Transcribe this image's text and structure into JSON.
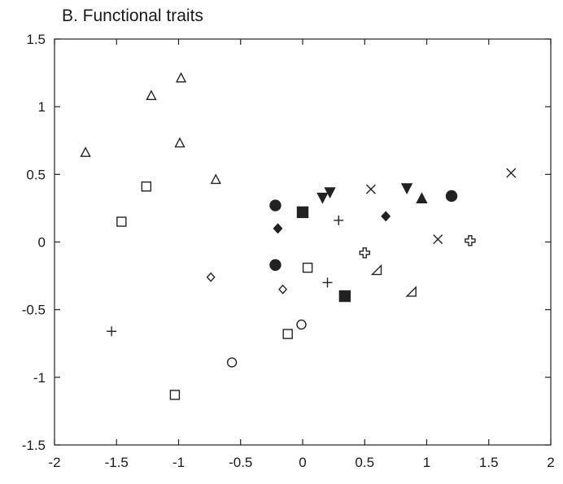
{
  "chart_data": {
    "type": "scatter",
    "title": "B. Functional traits",
    "xlabel": "",
    "ylabel": "",
    "xlim": [
      -2,
      2
    ],
    "ylim": [
      -1.5,
      1.5
    ],
    "x_ticks": [
      -2,
      -1.5,
      -1,
      -0.5,
      0,
      0.5,
      1,
      1.5,
      2
    ],
    "y_ticks": [
      -1.5,
      -1,
      -0.5,
      0,
      0.5,
      1,
      1.5
    ],
    "x_tick_labels": [
      "-2",
      "-1.5",
      "-1",
      "-0.5",
      "0",
      "0.5",
      "1",
      "1.5",
      "2"
    ],
    "y_tick_labels": [
      "-1.5",
      "-1",
      "-0.5",
      "0",
      "0.5",
      "1",
      "1.5"
    ],
    "grid": false,
    "legend": "none",
    "series": [
      {
        "marker": "open-triangle",
        "points": [
          [
            -1.75,
            0.66
          ],
          [
            -1.22,
            1.08
          ],
          [
            -0.98,
            1.21
          ],
          [
            -0.99,
            0.73
          ],
          [
            -0.7,
            0.46
          ]
        ]
      },
      {
        "marker": "open-square",
        "points": [
          [
            -1.46,
            0.15
          ],
          [
            -1.26,
            0.41
          ],
          [
            0.04,
            -0.19
          ],
          [
            -0.12,
            -0.68
          ],
          [
            -1.03,
            -1.13
          ]
        ]
      },
      {
        "marker": "plus",
        "points": [
          [
            -1.54,
            -0.66
          ],
          [
            0.29,
            0.16
          ],
          [
            0.2,
            -0.3
          ]
        ]
      },
      {
        "marker": "open-diamond",
        "points": [
          [
            -0.74,
            -0.26
          ],
          [
            -0.16,
            -0.35
          ]
        ]
      },
      {
        "marker": "open-circle",
        "points": [
          [
            -0.57,
            -0.89
          ],
          [
            -0.01,
            -0.61
          ]
        ]
      },
      {
        "marker": "filled-circle",
        "points": [
          [
            -0.22,
            0.27
          ],
          [
            -0.22,
            -0.17
          ],
          [
            1.2,
            0.34
          ]
        ]
      },
      {
        "marker": "filled-square",
        "points": [
          [
            0.0,
            0.22
          ],
          [
            0.34,
            -0.4
          ]
        ]
      },
      {
        "marker": "filled-diamond",
        "points": [
          [
            -0.2,
            0.1
          ],
          [
            0.67,
            0.19
          ]
        ]
      },
      {
        "marker": "filled-triangle-down",
        "points": [
          [
            0.16,
            0.33
          ],
          [
            0.22,
            0.37
          ],
          [
            0.84,
            0.4
          ]
        ]
      },
      {
        "marker": "filled-triangle",
        "points": [
          [
            0.96,
            0.32
          ]
        ]
      },
      {
        "marker": "cross",
        "points": [
          [
            0.55,
            0.39
          ],
          [
            1.09,
            0.02
          ],
          [
            1.68,
            0.51
          ]
        ]
      },
      {
        "marker": "open-plus",
        "points": [
          [
            0.5,
            -0.08
          ],
          [
            1.35,
            0.01
          ]
        ]
      },
      {
        "marker": "right-triangle",
        "points": [
          [
            0.6,
            -0.21
          ],
          [
            0.88,
            -0.37
          ]
        ]
      }
    ]
  }
}
